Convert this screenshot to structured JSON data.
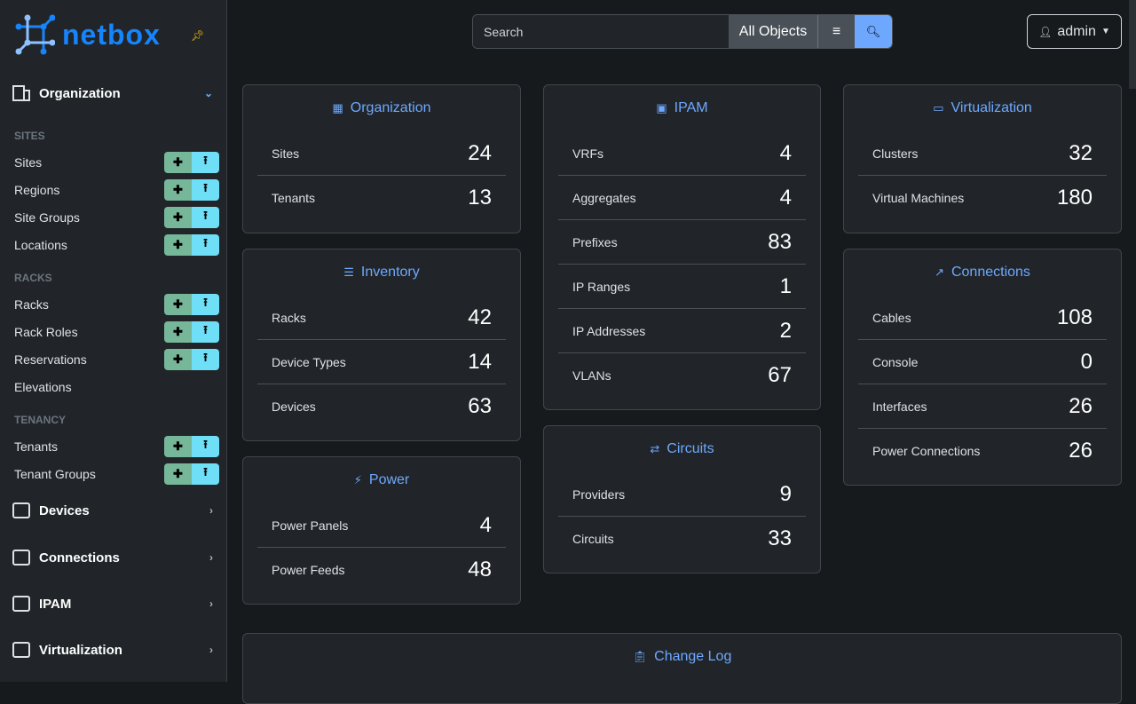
{
  "brand": {
    "name": "netbox",
    "pin_icon": "pin-icon"
  },
  "sidebar": {
    "organization": "Organization",
    "sections": [
      {
        "title": "SITES",
        "items": [
          {
            "label": "Sites",
            "btns": true
          },
          {
            "label": "Regions",
            "btns": true
          },
          {
            "label": "Site Groups",
            "btns": true
          },
          {
            "label": "Locations",
            "btns": true
          }
        ]
      },
      {
        "title": "RACKS",
        "items": [
          {
            "label": "Racks",
            "btns": true
          },
          {
            "label": "Rack Roles",
            "btns": true
          },
          {
            "label": "Reservations",
            "btns": true
          },
          {
            "label": "Elevations",
            "btns": false
          }
        ]
      },
      {
        "title": "TENANCY",
        "items": [
          {
            "label": "Tenants",
            "btns": true
          },
          {
            "label": "Tenant Groups",
            "btns": true
          }
        ]
      }
    ],
    "groups": [
      "Devices",
      "Connections",
      "IPAM",
      "Virtualization"
    ]
  },
  "search": {
    "placeholder": "Search",
    "scope": "All Objects"
  },
  "user": {
    "name": "admin"
  },
  "cards": {
    "organization": {
      "title": "Organization",
      "rows": [
        [
          "Sites",
          "24"
        ],
        [
          "Tenants",
          "13"
        ]
      ]
    },
    "inventory": {
      "title": "Inventory",
      "rows": [
        [
          "Racks",
          "42"
        ],
        [
          "Device Types",
          "14"
        ],
        [
          "Devices",
          "63"
        ]
      ]
    },
    "power": {
      "title": "Power",
      "rows": [
        [
          "Power Panels",
          "4"
        ],
        [
          "Power Feeds",
          "48"
        ]
      ]
    },
    "ipam": {
      "title": "IPAM",
      "rows": [
        [
          "VRFs",
          "4"
        ],
        [
          "Aggregates",
          "4"
        ],
        [
          "Prefixes",
          "83"
        ],
        [
          "IP Ranges",
          "1"
        ],
        [
          "IP Addresses",
          "2"
        ],
        [
          "VLANs",
          "67"
        ]
      ]
    },
    "circuits": {
      "title": "Circuits",
      "rows": [
        [
          "Providers",
          "9"
        ],
        [
          "Circuits",
          "33"
        ]
      ]
    },
    "virtualization": {
      "title": "Virtualization",
      "rows": [
        [
          "Clusters",
          "32"
        ],
        [
          "Virtual Machines",
          "180"
        ]
      ]
    },
    "connections": {
      "title": "Connections",
      "rows": [
        [
          "Cables",
          "108"
        ],
        [
          "Console",
          "0"
        ],
        [
          "Interfaces",
          "26"
        ],
        [
          "Power Connections",
          "26"
        ]
      ]
    },
    "changelog": {
      "title": "Change Log",
      "rows": []
    }
  },
  "colors": {
    "accent": "#6ea8fe",
    "brand": "#1685fc",
    "add": "#75b798",
    "import": "#6edff6"
  }
}
